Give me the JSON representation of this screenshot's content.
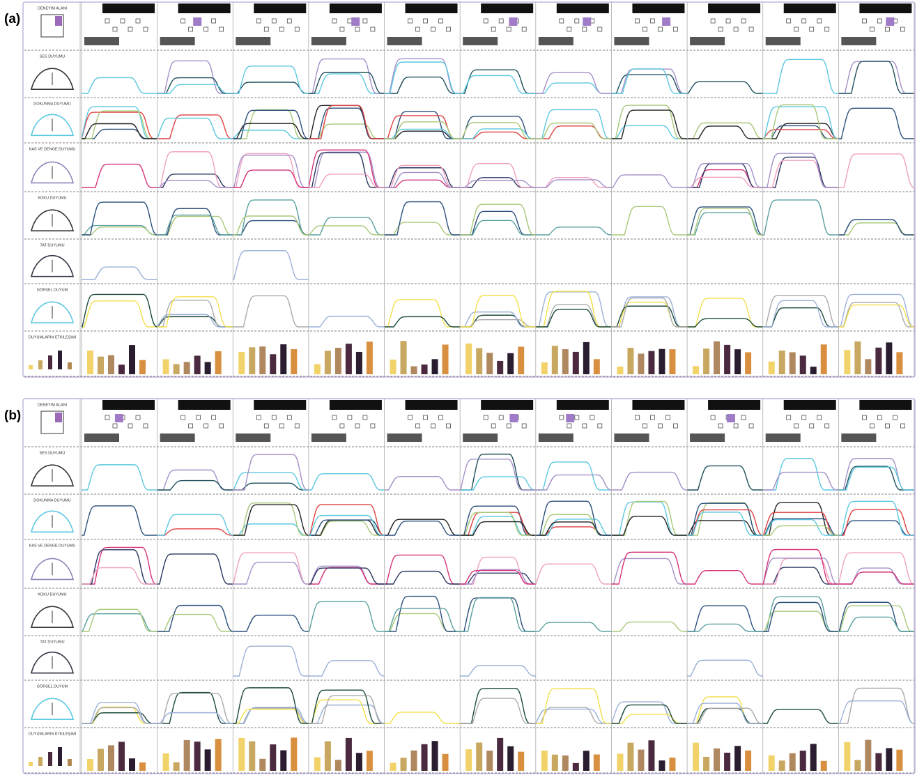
{
  "panels": [
    {
      "label": "(a)",
      "rows": [
        "DENEYIM ALANI",
        "SES DUYUMU",
        "DOKUNMA DUYUMU",
        "KAS VE DENGE DUYUMU",
        "KOKU DUYUMU",
        "TAT DUYUMU",
        "GÖRSEL DUYUM",
        "DUYUMLARIN ETKILEŞIMI"
      ]
    },
    {
      "label": "(b)",
      "rows": [
        "DENEYIM ALANI",
        "SES DUYUMU",
        "DOKUNMA DUYUMU",
        "KAS VE DENGE DUYUMU",
        "KOKU DUYUMU",
        "TAT DUYUMU",
        "GÖRSEL DUYUM",
        "DUYUMLARIN ETKILEŞIMI"
      ]
    }
  ]
}
